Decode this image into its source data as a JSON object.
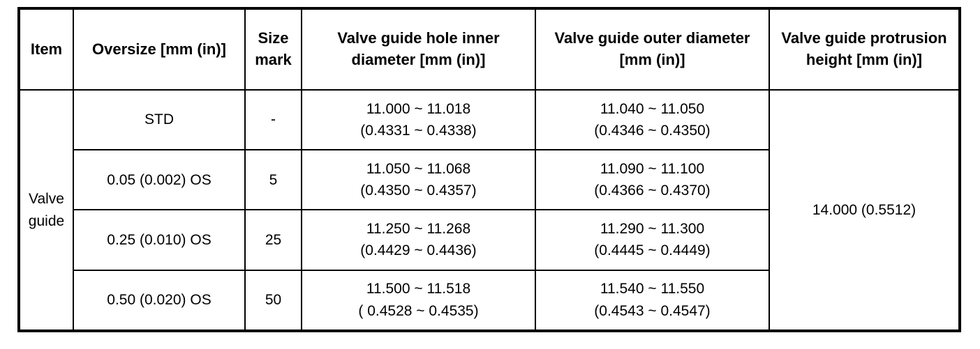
{
  "table": {
    "colors": {
      "border": "#000000",
      "background": "#ffffff",
      "text": "#000000"
    },
    "headers": {
      "item": "Item",
      "oversize": "Oversize [mm (in)]",
      "size_mark": "Size mark",
      "inner_diameter": "Valve guide hole inner diameter [mm (in)]",
      "outer_diameter": "Valve guide outer diameter [mm (in)]",
      "protrusion_height": "Valve guide protrusion height [mm (in)]"
    },
    "item_label": "Valve guide",
    "protrusion_height_value": "14.000 (0.5512)",
    "rows": [
      {
        "oversize": "STD",
        "size_mark": "-",
        "inner_mm": "11.000 ~ 11.018",
        "inner_in": "(0.4331 ~ 0.4338)",
        "outer_mm": "11.040 ~ 11.050",
        "outer_in": "(0.4346 ~ 0.4350)"
      },
      {
        "oversize": "0.05 (0.002) OS",
        "size_mark": "5",
        "inner_mm": "11.050 ~ 11.068",
        "inner_in": "(0.4350 ~ 0.4357)",
        "outer_mm": "11.090 ~ 11.100",
        "outer_in": "(0.4366 ~ 0.4370)"
      },
      {
        "oversize": "0.25 (0.010) OS",
        "size_mark": "25",
        "inner_mm": "11.250 ~ 11.268",
        "inner_in": "(0.4429 ~ 0.4436)",
        "outer_mm": "11.290 ~ 11.300",
        "outer_in": "(0.4445 ~ 0.4449)"
      },
      {
        "oversize": "0.50 (0.020) OS",
        "size_mark": "50",
        "inner_mm": "11.500 ~ 11.518",
        "inner_in": "( 0.4528 ~ 0.4535)",
        "outer_mm": "11.540 ~ 11.550",
        "outer_in": "(0.4543 ~ 0.4547)"
      }
    ]
  }
}
